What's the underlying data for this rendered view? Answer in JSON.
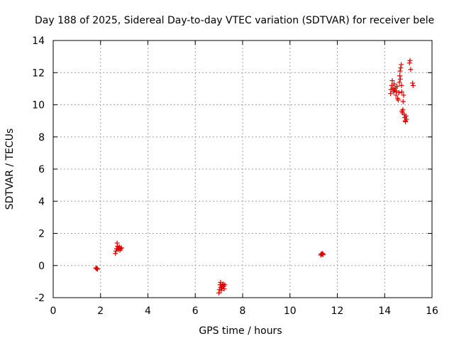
{
  "chart_data": {
    "type": "scatter",
    "title": "Day 188 of 2025, Sidereal Day-to-day VTEC variation (SDTVAR) for receiver bele",
    "xlabel": "GPS time / hours",
    "ylabel": "SDTVAR / TECUs",
    "xlim": [
      0,
      16
    ],
    "ylim": [
      -2,
      14
    ],
    "xticks": [
      0,
      2,
      4,
      6,
      8,
      10,
      12,
      14,
      16
    ],
    "yticks": [
      -2,
      0,
      2,
      4,
      6,
      8,
      10,
      12,
      14
    ],
    "grid": true,
    "marker": "plus",
    "color": "#e00000",
    "series": [
      {
        "name": "SDTVAR",
        "points": [
          [
            1.8,
            -0.15
          ],
          [
            1.83,
            -0.2
          ],
          [
            1.85,
            -0.18
          ],
          [
            1.87,
            -0.22
          ],
          [
            2.63,
            0.75
          ],
          [
            2.65,
            0.9
          ],
          [
            2.68,
            1.05
          ],
          [
            2.7,
            1.4
          ],
          [
            2.72,
            1.2
          ],
          [
            2.75,
            1.0
          ],
          [
            2.78,
            1.1
          ],
          [
            2.8,
            1.15
          ],
          [
            2.82,
            0.95
          ],
          [
            2.85,
            1.05
          ],
          [
            2.88,
            1.1
          ],
          [
            7.0,
            -1.7
          ],
          [
            7.02,
            -1.5
          ],
          [
            7.05,
            -1.2
          ],
          [
            7.07,
            -1.05
          ],
          [
            7.08,
            -1.35
          ],
          [
            7.1,
            -1.55
          ],
          [
            7.12,
            -1.4
          ],
          [
            7.15,
            -1.25
          ],
          [
            7.18,
            -1.15
          ],
          [
            7.2,
            -1.3
          ],
          [
            7.22,
            -1.45
          ],
          [
            7.25,
            -1.2
          ],
          [
            11.3,
            0.65
          ],
          [
            11.32,
            0.72
          ],
          [
            11.35,
            0.7
          ],
          [
            11.38,
            0.75
          ],
          [
            11.4,
            0.68
          ],
          [
            14.25,
            10.7
          ],
          [
            14.27,
            10.95
          ],
          [
            14.3,
            11.2
          ],
          [
            14.32,
            11.5
          ],
          [
            14.35,
            11.0
          ],
          [
            14.38,
            10.8
          ],
          [
            14.4,
            11.3
          ],
          [
            14.42,
            10.9
          ],
          [
            14.45,
            11.05
          ],
          [
            14.48,
            10.6
          ],
          [
            14.5,
            10.85
          ],
          [
            14.52,
            11.15
          ],
          [
            14.55,
            10.4
          ],
          [
            14.57,
            10.3
          ],
          [
            14.6,
            10.75
          ],
          [
            14.62,
            11.4
          ],
          [
            14.64,
            11.8
          ],
          [
            14.65,
            12.1
          ],
          [
            14.66,
            11.6
          ],
          [
            14.68,
            12.3
          ],
          [
            14.7,
            12.5
          ],
          [
            14.71,
            11.2
          ],
          [
            14.72,
            10.8
          ],
          [
            14.73,
            9.6
          ],
          [
            14.75,
            9.5
          ],
          [
            14.77,
            9.7
          ],
          [
            14.78,
            10.2
          ],
          [
            14.8,
            10.6
          ],
          [
            14.82,
            9.4
          ],
          [
            14.85,
            9.2
          ],
          [
            14.87,
            9.0
          ],
          [
            14.88,
            8.95
          ],
          [
            14.9,
            9.3
          ],
          [
            14.92,
            9.1
          ],
          [
            15.05,
            12.6
          ],
          [
            15.07,
            12.75
          ],
          [
            15.1,
            12.2
          ],
          [
            15.18,
            11.35
          ],
          [
            15.2,
            11.2
          ]
        ]
      }
    ]
  }
}
